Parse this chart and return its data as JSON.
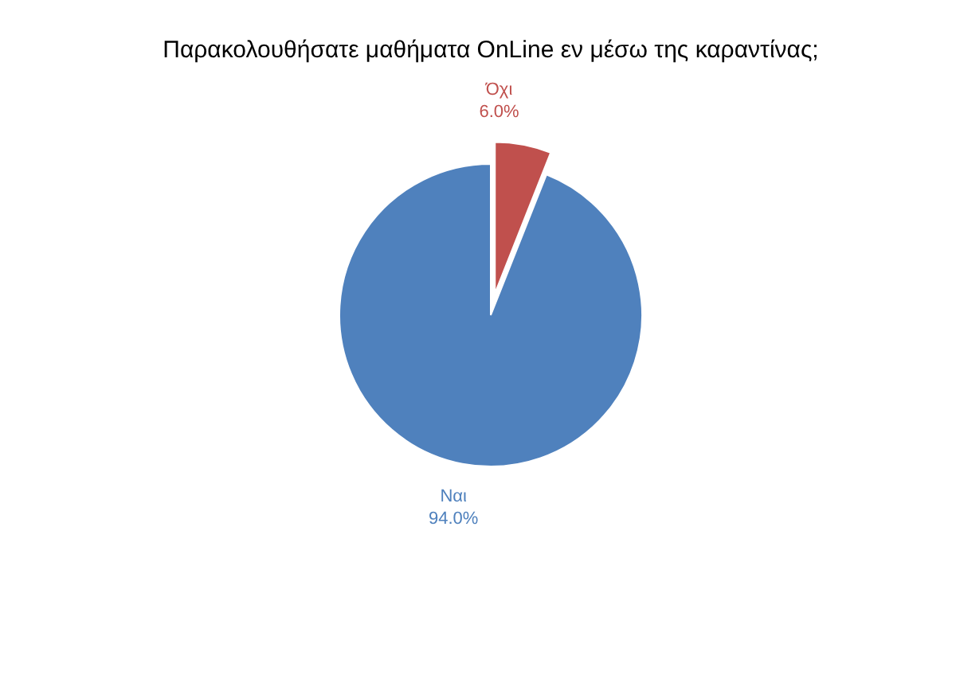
{
  "chart_data": {
    "type": "pie",
    "title": "Παρακολουθήσατε μαθήματα OnLine εν μέσω της καραντίνας;",
    "categories": [
      "Ναι",
      "Όχι"
    ],
    "values": [
      94.0,
      6.0
    ],
    "colors": [
      "#4f81bd",
      "#c0504d"
    ],
    "value_labels": [
      "94.0%",
      "6.0%"
    ],
    "legend": false
  }
}
